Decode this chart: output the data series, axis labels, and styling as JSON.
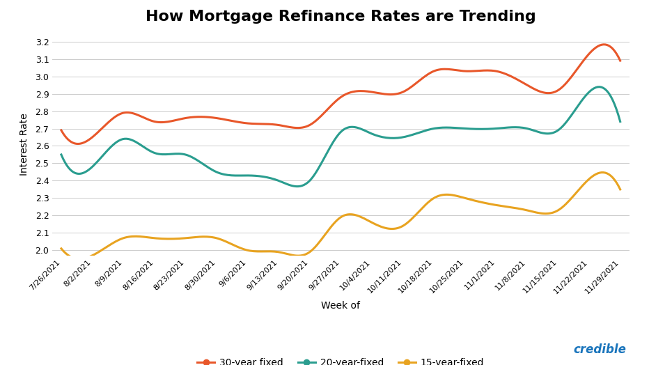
{
  "title": "How Mortgage Refinance Rates are Trending",
  "xlabel": "Week of",
  "ylabel": "Interest Rate",
  "xlabels": [
    "7/26/2021",
    "8/2/2021",
    "8/9/2021",
    "8/16/2021",
    "8/23/2021",
    "8/30/2021",
    "9/6/2021",
    "9/13/2021",
    "9/20/2021",
    "9/27/2021",
    "10/4/2021",
    "10/11/2021",
    "10/18/2021",
    "10/25/2021",
    "11/1/2021",
    "11/8/2021",
    "11/15/2021",
    "11/22/2021",
    "11/29/2021"
  ],
  "thirty_year": [
    2.69,
    2.65,
    2.79,
    2.74,
    2.76,
    2.76,
    2.73,
    2.72,
    2.72,
    2.88,
    2.91,
    2.91,
    3.03,
    3.03,
    3.03,
    2.95,
    2.92,
    3.13,
    3.09
  ],
  "twenty_year": [
    2.55,
    2.48,
    2.64,
    2.56,
    2.55,
    2.45,
    2.43,
    2.4,
    2.4,
    2.68,
    2.67,
    2.65,
    2.7,
    2.7,
    2.7,
    2.7,
    2.69,
    2.91,
    2.74
  ],
  "fifteen_year": [
    2.01,
    1.97,
    2.07,
    2.07,
    2.07,
    2.07,
    2.0,
    1.99,
    1.99,
    2.19,
    2.16,
    2.14,
    2.3,
    2.3,
    2.26,
    2.23,
    2.23,
    2.41,
    2.35
  ],
  "thirty_color": "#E8572A",
  "twenty_color": "#2A9D8F",
  "fifteen_color": "#E8A320",
  "bg_color": "#FFFFFF",
  "grid_color": "#CCCCCC",
  "ylim": [
    1.97,
    3.25
  ],
  "yticks": [
    2.0,
    2.1,
    2.2,
    2.3,
    2.4,
    2.5,
    2.6,
    2.7,
    2.8,
    2.9,
    3.0,
    3.1,
    3.2
  ],
  "legend_labels": [
    "30-year fixed",
    "20-year-fixed",
    "15-year-fixed"
  ],
  "line_width": 2.2,
  "credible_color": "#1A75BC",
  "title_fontsize": 16,
  "axis_label_fontsize": 10,
  "tick_fontsize": 9,
  "xtick_fontsize": 8
}
